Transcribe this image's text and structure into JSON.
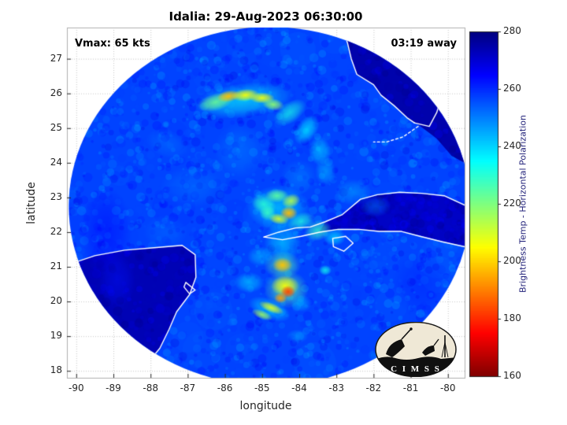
{
  "title": "Idalia: 29-Aug-2023 06:30:00",
  "annotations": {
    "vmax": "Vmax: 65 kts",
    "time_away": "03:19 away"
  },
  "axes": {
    "xlabel": "longitude",
    "ylabel": "latitude",
    "xlim": [
      -90.25,
      -79.55
    ],
    "ylim": [
      17.8,
      27.9
    ],
    "xticks": [
      -90,
      -89,
      -88,
      -87,
      -86,
      -85,
      -84,
      -83,
      -82,
      -81,
      -80
    ],
    "yticks": [
      18,
      19,
      20,
      21,
      22,
      23,
      24,
      25,
      26,
      27
    ],
    "grid": "dotted"
  },
  "colorbar": {
    "label": "Brightness Temp - Horizontal Polarization",
    "min": 160,
    "max": 280,
    "ticks": [
      160,
      180,
      200,
      220,
      240,
      260,
      280
    ],
    "colormap": "reversed-jet",
    "orientation": "vertical-right"
  },
  "logo": {
    "text": "C I M S S"
  },
  "chart_data": {
    "type": "heatmap",
    "description": "Microwave brightness temperature (horizontal polarization, K) satellite swath of Hurricane Idalia over the NW Caribbean / Gulf of Mexico; blue ~255-260K background, warm rainband features 180-240K, cold land areas ~272-276K (dark navy), white coastlines overlaid.",
    "units": "K",
    "value_range": [
      160,
      280
    ],
    "background_temp_K": 257,
    "swath": {
      "center_lon": -84.8,
      "center_lat": 22.75,
      "radius_lon_deg": 5.4,
      "radius_lat_deg": 5.17
    },
    "cold_regions": [
      {
        "name": "florida-land",
        "temp": 275,
        "polygon": [
          [
            -82.85,
            27.9
          ],
          [
            -82.7,
            27.45
          ],
          [
            -82.6,
            27.0
          ],
          [
            -82.45,
            26.55
          ],
          [
            -82.0,
            26.25
          ],
          [
            -81.8,
            25.95
          ],
          [
            -81.45,
            25.65
          ],
          [
            -81.1,
            25.3
          ],
          [
            -80.8,
            25.1
          ],
          [
            -80.3,
            24.7
          ],
          [
            -79.9,
            24.2
          ],
          [
            -79.55,
            24.0
          ],
          [
            -79.55,
            27.9
          ]
        ]
      },
      {
        "name": "cuba-east-land",
        "temp": 272,
        "polygon": [
          [
            -83.3,
            22.28
          ],
          [
            -82.85,
            22.5
          ],
          [
            -82.35,
            22.93
          ],
          [
            -81.9,
            23.06
          ],
          [
            -81.3,
            23.13
          ],
          [
            -80.7,
            23.1
          ],
          [
            -80.1,
            23.03
          ],
          [
            -79.55,
            22.76
          ],
          [
            -79.55,
            21.6
          ],
          [
            -80.15,
            21.74
          ],
          [
            -80.75,
            21.9
          ],
          [
            -81.25,
            22.04
          ],
          [
            -81.85,
            22.04
          ],
          [
            -82.4,
            22.1
          ],
          [
            -82.95,
            22.1
          ],
          [
            -83.45,
            22.02
          ]
        ]
      },
      {
        "name": "yucatan-land",
        "temp": 274,
        "polygon": [
          [
            -90.25,
            21.05
          ],
          [
            -89.5,
            21.32
          ],
          [
            -88.7,
            21.48
          ],
          [
            -87.9,
            21.55
          ],
          [
            -87.15,
            21.62
          ],
          [
            -86.8,
            21.35
          ],
          [
            -86.78,
            20.7
          ],
          [
            -86.95,
            20.2
          ],
          [
            -87.3,
            19.7
          ],
          [
            -87.5,
            19.2
          ],
          [
            -87.75,
            18.65
          ],
          [
            -88.1,
            18.2
          ],
          [
            -88.25,
            17.8
          ],
          [
            -90.25,
            17.8
          ]
        ]
      }
    ],
    "warm_features": [
      {
        "lon": -86.9,
        "lat": 23.3,
        "t": 250,
        "rx": 0.85,
        "ry": 0.6,
        "rot": 0,
        "a": 0.45
      },
      {
        "lon": -85.6,
        "lat": 24.35,
        "t": 249,
        "rx": 0.7,
        "ry": 0.8,
        "rot": 0,
        "a": 0.45
      },
      {
        "lon": -87.6,
        "lat": 22.0,
        "t": 251,
        "rx": 0.6,
        "ry": 0.5,
        "rot": 0,
        "a": 0.4
      },
      {
        "lon": -84.0,
        "lat": 23.6,
        "t": 248,
        "rx": 0.5,
        "ry": 0.5,
        "rot": 0,
        "a": 0.4
      },
      {
        "lon": -82.55,
        "lat": 23.15,
        "t": 244,
        "rx": 0.5,
        "ry": 0.38,
        "rot": 0,
        "a": 0.5
      },
      {
        "lon": -81.95,
        "lat": 22.75,
        "t": 247,
        "rx": 0.42,
        "ry": 0.32,
        "rot": 0,
        "a": 0.4
      },
      {
        "lon": -87.55,
        "lat": 24.55,
        "t": 249,
        "rx": 0.6,
        "ry": 0.4,
        "rot": 20,
        "a": 0.4
      },
      {
        "lon": -85.5,
        "lat": 25.8,
        "t": 234,
        "rx": 1.35,
        "ry": 0.5,
        "rot": -7,
        "a": 0.65
      },
      {
        "lon": -86.25,
        "lat": 25.75,
        "t": 222,
        "rx": 0.5,
        "ry": 0.25,
        "rot": -15,
        "a": 0.85
      },
      {
        "lon": -85.9,
        "lat": 25.92,
        "t": 198,
        "rx": 0.32,
        "ry": 0.17,
        "rot": -10,
        "a": 0.95
      },
      {
        "lon": -85.45,
        "lat": 25.95,
        "t": 206,
        "rx": 0.38,
        "ry": 0.18,
        "rot": -5,
        "a": 0.95
      },
      {
        "lon": -85.0,
        "lat": 25.87,
        "t": 207,
        "rx": 0.34,
        "ry": 0.16,
        "rot": 0,
        "a": 0.95
      },
      {
        "lon": -84.7,
        "lat": 25.68,
        "t": 218,
        "rx": 0.3,
        "ry": 0.18,
        "rot": 10,
        "a": 0.9
      },
      {
        "lon": -84.25,
        "lat": 25.45,
        "t": 232,
        "rx": 0.5,
        "ry": 0.3,
        "rot": -35,
        "a": 0.7
      },
      {
        "lon": -83.8,
        "lat": 24.95,
        "t": 236,
        "rx": 0.45,
        "ry": 0.3,
        "rot": -55,
        "a": 0.7
      },
      {
        "lon": -83.45,
        "lat": 24.35,
        "t": 239,
        "rx": 0.3,
        "ry": 0.45,
        "rot": -10,
        "a": 0.65
      },
      {
        "lon": -83.3,
        "lat": 23.75,
        "t": 243,
        "rx": 0.28,
        "ry": 0.4,
        "rot": 0,
        "a": 0.6
      },
      {
        "lon": -84.55,
        "lat": 22.7,
        "t": 236,
        "rx": 0.85,
        "ry": 0.65,
        "rot": 0,
        "a": 0.6
      },
      {
        "lon": -84.95,
        "lat": 22.8,
        "t": 230,
        "rx": 0.35,
        "ry": 0.28,
        "rot": 25,
        "a": 0.85
      },
      {
        "lon": -84.6,
        "lat": 23.05,
        "t": 224,
        "rx": 0.33,
        "ry": 0.2,
        "rot": 0,
        "a": 0.9
      },
      {
        "lon": -84.22,
        "lat": 22.9,
        "t": 214,
        "rx": 0.26,
        "ry": 0.2,
        "rot": -20,
        "a": 0.9
      },
      {
        "lon": -84.28,
        "lat": 22.55,
        "t": 197,
        "rx": 0.24,
        "ry": 0.2,
        "rot": 0,
        "a": 0.95
      },
      {
        "lon": -84.55,
        "lat": 22.38,
        "t": 210,
        "rx": 0.28,
        "ry": 0.16,
        "rot": 10,
        "a": 0.9
      },
      {
        "lon": -84.85,
        "lat": 22.55,
        "t": 228,
        "rx": 0.22,
        "ry": 0.22,
        "rot": 0,
        "a": 0.85
      },
      {
        "lon": -83.95,
        "lat": 22.3,
        "t": 231,
        "rx": 0.4,
        "ry": 0.26,
        "rot": -20,
        "a": 0.75
      },
      {
        "lon": -83.5,
        "lat": 22.05,
        "t": 228,
        "rx": 0.38,
        "ry": 0.3,
        "rot": -15,
        "a": 0.75
      },
      {
        "lon": -83.05,
        "lat": 21.85,
        "t": 238,
        "rx": 0.3,
        "ry": 0.25,
        "rot": 0,
        "a": 0.7
      },
      {
        "lon": -84.45,
        "lat": 21.7,
        "t": 236,
        "rx": 0.5,
        "ry": 0.65,
        "rot": 0,
        "a": 0.55
      },
      {
        "lon": -84.45,
        "lat": 21.05,
        "t": 224,
        "rx": 0.5,
        "ry": 0.4,
        "rot": 0,
        "a": 0.65
      },
      {
        "lon": -84.45,
        "lat": 21.05,
        "t": 198,
        "rx": 0.27,
        "ry": 0.22,
        "rot": 0,
        "a": 0.95
      },
      {
        "lon": -84.35,
        "lat": 20.35,
        "t": 224,
        "rx": 0.6,
        "ry": 0.55,
        "rot": 0,
        "a": 0.7
      },
      {
        "lon": -84.38,
        "lat": 20.45,
        "t": 205,
        "rx": 0.38,
        "ry": 0.3,
        "rot": 0,
        "a": 0.9
      },
      {
        "lon": -84.3,
        "lat": 20.28,
        "t": 183,
        "rx": 0.2,
        "ry": 0.18,
        "rot": 0,
        "a": 0.95
      },
      {
        "lon": -84.5,
        "lat": 20.1,
        "t": 194,
        "rx": 0.18,
        "ry": 0.15,
        "rot": 0,
        "a": 0.9
      },
      {
        "lon": -84.8,
        "lat": 19.78,
        "t": 236,
        "rx": 0.6,
        "ry": 0.3,
        "rot": 22,
        "a": 0.6
      },
      {
        "lon": -84.75,
        "lat": 19.82,
        "t": 208,
        "rx": 0.36,
        "ry": 0.14,
        "rot": 22,
        "a": 0.9
      },
      {
        "lon": -85.0,
        "lat": 19.62,
        "t": 216,
        "rx": 0.3,
        "ry": 0.13,
        "rot": 22,
        "a": 0.85
      },
      {
        "lon": -85.35,
        "lat": 20.55,
        "t": 239,
        "rx": 0.4,
        "ry": 0.3,
        "rot": 0,
        "a": 0.6
      },
      {
        "lon": -85.05,
        "lat": 21.3,
        "t": 241,
        "rx": 0.35,
        "ry": 0.3,
        "rot": 0,
        "a": 0.55
      },
      {
        "lon": -83.3,
        "lat": 20.9,
        "t": 233,
        "rx": 0.17,
        "ry": 0.15,
        "rot": 0,
        "a": 0.8
      },
      {
        "lon": -83.95,
        "lat": 19.95,
        "t": 243,
        "rx": 0.3,
        "ry": 0.25,
        "rot": 0,
        "a": 0.55
      },
      {
        "lon": -84.05,
        "lat": 19.0,
        "t": 245,
        "rx": 0.3,
        "ry": 0.2,
        "rot": 0,
        "a": 0.5
      },
      {
        "lon": -89.2,
        "lat": 22.0,
        "t": 265,
        "rx": 0.7,
        "ry": 1.3,
        "rot": 0,
        "a": 0.5
      },
      {
        "lon": -88.9,
        "lat": 20.6,
        "t": 263,
        "rx": 0.5,
        "ry": 0.8,
        "rot": 0,
        "a": 0.45
      },
      {
        "lon": -80.7,
        "lat": 20.5,
        "t": 262,
        "rx": 0.8,
        "ry": 0.9,
        "rot": 0,
        "a": 0.4
      }
    ],
    "coastlines": {
      "cuba_north": [
        [
          -84.95,
          21.86
        ],
        [
          -84.55,
          22.0
        ],
        [
          -84.1,
          22.12
        ],
        [
          -83.7,
          22.15
        ],
        [
          -83.3,
          22.3
        ],
        [
          -82.85,
          22.5
        ],
        [
          -82.35,
          22.95
        ],
        [
          -81.9,
          23.08
        ],
        [
          -81.3,
          23.15
        ],
        [
          -80.7,
          23.12
        ],
        [
          -80.1,
          23.05
        ],
        [
          -79.55,
          22.78
        ]
      ],
      "cuba_south": [
        [
          -84.95,
          21.86
        ],
        [
          -84.45,
          21.78
        ],
        [
          -83.95,
          21.88
        ],
        [
          -83.45,
          22.0
        ],
        [
          -82.95,
          22.08
        ],
        [
          -82.4,
          22.08
        ],
        [
          -81.85,
          22.02
        ],
        [
          -81.25,
          22.02
        ],
        [
          -80.75,
          21.88
        ],
        [
          -80.15,
          21.72
        ],
        [
          -79.55,
          21.58
        ]
      ],
      "isle_of_youth": [
        [
          -83.1,
          21.82
        ],
        [
          -82.75,
          21.88
        ],
        [
          -82.55,
          21.68
        ],
        [
          -82.8,
          21.45
        ],
        [
          -83.08,
          21.58
        ],
        [
          -83.1,
          21.82
        ]
      ],
      "florida_west": [
        [
          -82.85,
          27.9
        ],
        [
          -82.7,
          27.45
        ],
        [
          -82.6,
          27.0
        ],
        [
          -82.45,
          26.55
        ],
        [
          -82.0,
          26.25
        ],
        [
          -81.8,
          25.95
        ],
        [
          -81.45,
          25.65
        ],
        [
          -81.1,
          25.3
        ],
        [
          -80.9,
          25.15
        ]
      ],
      "florida_keys": [
        [
          -80.8,
          25.05
        ],
        [
          -81.2,
          24.75
        ],
        [
          -81.65,
          24.6
        ],
        [
          -82.0,
          24.6
        ]
      ],
      "florida_east": [
        [
          -80.05,
          27.2
        ],
        [
          -80.1,
          26.6
        ],
        [
          -80.15,
          26.0
        ],
        [
          -80.3,
          25.45
        ],
        [
          -80.5,
          25.05
        ],
        [
          -80.9,
          25.15
        ]
      ],
      "bahamas": [
        [
          -79.55,
          26.7
        ],
        [
          -79.85,
          26.55
        ],
        [
          -79.9,
          26.1
        ],
        [
          -79.6,
          25.95
        ]
      ],
      "yucatan": [
        [
          -90.25,
          21.05
        ],
        [
          -89.5,
          21.32
        ],
        [
          -88.7,
          21.48
        ],
        [
          -87.9,
          21.55
        ],
        [
          -87.15,
          21.62
        ],
        [
          -86.8,
          21.35
        ],
        [
          -86.78,
          20.7
        ],
        [
          -86.95,
          20.2
        ],
        [
          -87.3,
          19.7
        ],
        [
          -87.5,
          19.2
        ],
        [
          -87.75,
          18.65
        ],
        [
          -88.1,
          18.2
        ],
        [
          -88.25,
          17.8
        ]
      ],
      "cozumel": [
        [
          -87.05,
          20.55
        ],
        [
          -86.8,
          20.33
        ],
        [
          -86.95,
          20.22
        ],
        [
          -87.1,
          20.42
        ],
        [
          -87.05,
          20.55
        ]
      ]
    }
  }
}
